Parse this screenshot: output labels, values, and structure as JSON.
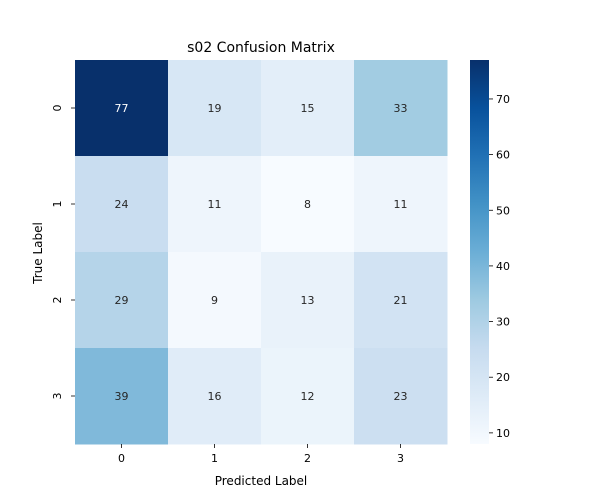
{
  "chart_data": {
    "type": "heatmap",
    "title": "s02 Confusion Matrix",
    "xlabel": "Predicted Label",
    "ylabel": "True Label",
    "x_categories": [
      "0",
      "1",
      "2",
      "3"
    ],
    "y_categories": [
      "0",
      "1",
      "2",
      "3"
    ],
    "values": [
      [
        77,
        19,
        15,
        33
      ],
      [
        24,
        11,
        8,
        11
      ],
      [
        29,
        9,
        13,
        21
      ],
      [
        39,
        16,
        12,
        23
      ]
    ],
    "colorbar": {
      "range": [
        8,
        77
      ],
      "ticks": [
        10,
        20,
        30,
        40,
        50,
        60,
        70
      ],
      "colormap": "Blues"
    },
    "annotated": true,
    "grid": false
  }
}
